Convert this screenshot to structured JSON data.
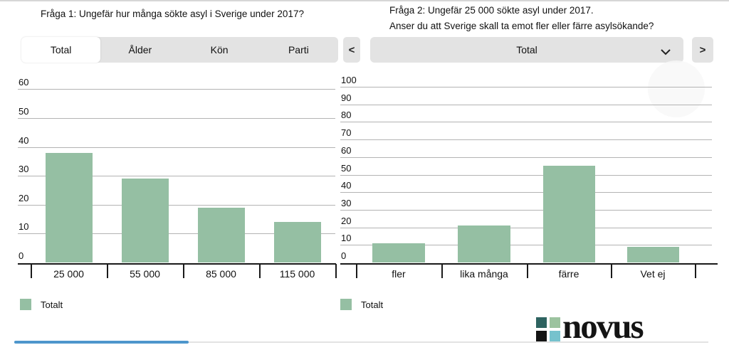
{
  "left_panel": {
    "title": "Fråga 1: Ungefär hur många sökte asyl i Sverige under 2017?",
    "tabs": [
      {
        "label": "Total",
        "active": true
      },
      {
        "label": "Ålder",
        "active": false
      },
      {
        "label": "Kön",
        "active": false
      },
      {
        "label": "Parti",
        "active": false
      }
    ],
    "prev_button_label": "<",
    "legend": {
      "label": "Totalt",
      "color": "#95bfa3"
    }
  },
  "right_panel": {
    "title_line1": "Fråga 2: Ungefär 25 000 sökte asyl under 2017.",
    "title_line2": "Anser du att Sverige skall ta emot fler eller färre asylsökande?",
    "dropdown_value": "Total",
    "next_button_label": ">",
    "legend": {
      "label": "Totalt",
      "color": "#95bfa3"
    }
  },
  "chart_data": [
    {
      "type": "bar",
      "title": "Fråga 1: Ungefär hur många sökte asyl i Sverige under 2017?",
      "categories": [
        "25 000",
        "55 000",
        "85 000",
        "115 000"
      ],
      "values": [
        38,
        29,
        19,
        14
      ],
      "series_name": "Totalt",
      "ylim": [
        0,
        60
      ],
      "ytick_step": 10,
      "grid": true,
      "bar_color": "#95bfa3",
      "legend_position": "bottom-left"
    },
    {
      "type": "bar",
      "title": "Fråga 2: Ungefär 25 000 sökte asyl under 2017. Anser du att Sverige skall ta emot fler eller färre asylsökande?",
      "categories": [
        "fler",
        "lika många",
        "färre",
        "Vet ej"
      ],
      "values": [
        11,
        21,
        55,
        9
      ],
      "series_name": "Totalt",
      "ylim": [
        0,
        100
      ],
      "ytick_step": 10,
      "grid": true,
      "bar_color": "#95bfa3",
      "legend_position": "bottom-left"
    }
  ],
  "branding": {
    "logo_text": "novus",
    "square_colors": [
      "#2e6360",
      "#9cc39f",
      "#141414",
      "#76c2cd"
    ]
  }
}
